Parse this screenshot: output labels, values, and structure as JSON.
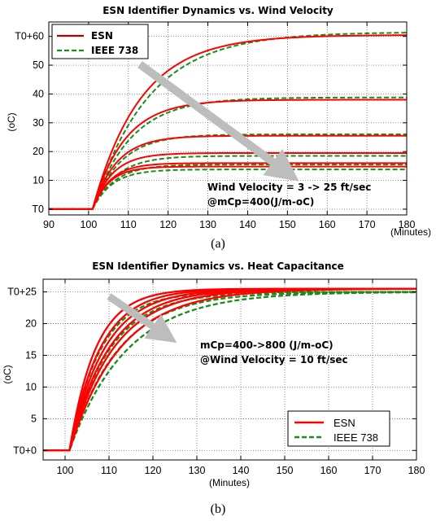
{
  "chart_data": [
    {
      "type": "line",
      "title": "ESN Identifier Dynamics vs. Wind Velocity",
      "caption": "(a)",
      "xlabel": "(Minutes)",
      "ylabel": "(oC)",
      "xlim": [
        90,
        180
      ],
      "ylim": [
        -2,
        65
      ],
      "x_ticks": [
        90,
        100,
        110,
        120,
        130,
        140,
        150,
        160,
        170,
        180
      ],
      "y_ticks": [
        {
          "value": 0,
          "label": "T0"
        },
        {
          "value": 10,
          "label": "10"
        },
        {
          "value": 20,
          "label": "20"
        },
        {
          "value": 30,
          "label": "30"
        },
        {
          "value": 40,
          "label": "40"
        },
        {
          "value": 50,
          "label": "50"
        },
        {
          "value": 60,
          "label": "T0+60"
        }
      ],
      "grid": true,
      "legend": {
        "position": "top-left",
        "entries": [
          "ESN",
          "IEEE 738"
        ]
      },
      "step_start": 101,
      "series": [
        {
          "name": "ESN",
          "color": "#ff0000",
          "style": "solid",
          "curves": [
            {
              "final": 60.5,
              "tau": 12
            },
            {
              "final": 38.0,
              "tau": 8
            },
            {
              "final": 25.5,
              "tau": 6
            },
            {
              "final": 19.5,
              "tau": 5
            },
            {
              "final": 16.0,
              "tau": 4.5
            },
            {
              "final": 14.8,
              "tau": 4.2
            }
          ]
        },
        {
          "name": "IEEE 738",
          "color": "#1a8c1a",
          "style": "dashed",
          "curves": [
            {
              "final": 61.5,
              "tau": 14
            },
            {
              "final": 38.8,
              "tau": 9.5
            },
            {
              "final": 26.0,
              "tau": 7
            },
            {
              "final": 18.5,
              "tau": 6
            },
            {
              "final": 15.5,
              "tau": 5.5
            },
            {
              "final": 13.8,
              "tau": 5
            }
          ]
        }
      ],
      "annotations": [
        "Wind Velocity = 3 -> 25 ft/sec",
        "@mCp=400(J/m-oC)"
      ]
    },
    {
      "type": "line",
      "title": "ESN Identifier Dynamics vs. Heat Capacitance",
      "caption": "(b)",
      "xlabel": "(Minutes)",
      "ylabel": "(oC)",
      "xlim": [
        95,
        180
      ],
      "ylim": [
        -1.5,
        27
      ],
      "x_ticks": [
        100,
        110,
        120,
        130,
        140,
        150,
        160,
        170,
        180
      ],
      "y_ticks": [
        {
          "value": 0,
          "label": "T0+0"
        },
        {
          "value": 5,
          "label": "5"
        },
        {
          "value": 10,
          "label": "10"
        },
        {
          "value": 15,
          "label": "15"
        },
        {
          "value": 20,
          "label": "20"
        },
        {
          "value": 25,
          "label": "T0+25"
        }
      ],
      "grid": true,
      "legend": {
        "position": "bottom-right",
        "entries": [
          "ESN",
          "IEEE 738"
        ]
      },
      "step_start": 101,
      "series": [
        {
          "name": "ESN",
          "color": "#ff0000",
          "style": "solid",
          "curves": [
            {
              "final": 25.5,
              "tau": 6
            },
            {
              "final": 25.5,
              "tau": 7
            },
            {
              "final": 25.5,
              "tau": 8
            },
            {
              "final": 25.5,
              "tau": 9
            },
            {
              "final": 25.5,
              "tau": 10
            },
            {
              "final": 25.5,
              "tau": 11.5
            }
          ]
        },
        {
          "name": "IEEE 738",
          "color": "#1a8c1a",
          "style": "dashed",
          "curves": [
            {
              "final": 25.0,
              "tau": 7
            },
            {
              "final": 25.0,
              "tau": 9
            },
            {
              "final": 25.0,
              "tau": 11
            },
            {
              "final": 25.0,
              "tau": 13
            }
          ]
        }
      ],
      "annotations": [
        "mCp=400->800 (J/m-oC)",
        "@Wind Velocity = 10 ft/sec"
      ]
    }
  ]
}
